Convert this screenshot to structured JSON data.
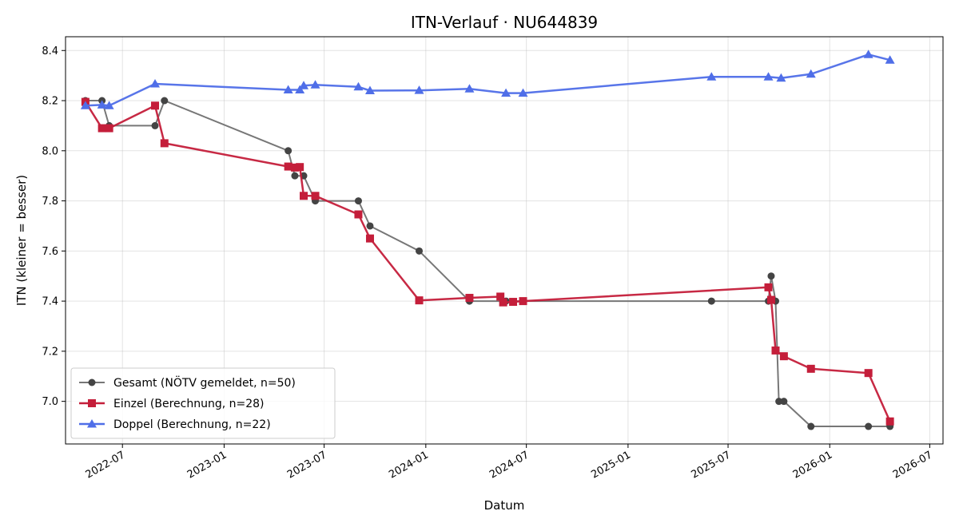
{
  "chart_data": {
    "type": "line",
    "title": "ITN-Verlauf · NU644839",
    "xlabel": "Datum",
    "ylabel": "ITN  (kleiner = besser)",
    "x_axis": {
      "kind": "date",
      "range": [
        "2022-03-20",
        "2026-07-25"
      ],
      "ticks": [
        "2022-07-01",
        "2023-01-01",
        "2023-07-01",
        "2024-01-01",
        "2024-07-01",
        "2025-01-01",
        "2025-07-01",
        "2026-01-01",
        "2026-07-01"
      ],
      "tick_labels": [
        "2022-07",
        "2023-01",
        "2023-07",
        "2024-01",
        "2024-07",
        "2025-01",
        "2025-07",
        "2026-01",
        "2026-07"
      ]
    },
    "y_axis": {
      "range": [
        6.83,
        8.455
      ],
      "ticks": [
        7.0,
        7.2,
        7.4,
        7.6,
        7.8,
        8.0,
        8.2,
        8.4
      ],
      "tick_labels": [
        "7.0",
        "7.2",
        "7.4",
        "7.6",
        "7.8",
        "8.0",
        "8.2",
        "8.4"
      ]
    },
    "grid": true,
    "legend_position": "lower-left",
    "series": [
      {
        "name": "Gesamt (NÖTV gemeldet, n=50)",
        "color": "#777777",
        "marker_color": "#444444",
        "marker": "circle",
        "points": [
          [
            "2022-04-25",
            8.2
          ],
          [
            "2022-05-25",
            8.2
          ],
          [
            "2022-06-07",
            8.1
          ],
          [
            "2022-08-29",
            8.1
          ],
          [
            "2022-09-15",
            8.2
          ],
          [
            "2023-04-27",
            8.0
          ],
          [
            "2023-05-09",
            7.9
          ],
          [
            "2023-05-25",
            7.9
          ],
          [
            "2023-06-15",
            7.8
          ],
          [
            "2023-09-01",
            7.8
          ],
          [
            "2023-09-22",
            7.7
          ],
          [
            "2023-12-20",
            7.6
          ],
          [
            "2024-03-20",
            7.4
          ],
          [
            "2024-05-25",
            7.4
          ],
          [
            "2024-06-25",
            7.4
          ],
          [
            "2025-06-01",
            7.4
          ],
          [
            "2025-09-12",
            7.4
          ],
          [
            "2025-09-17",
            7.5
          ],
          [
            "2025-09-25",
            7.4
          ],
          [
            "2025-10-01",
            7.0
          ],
          [
            "2025-10-10",
            7.0
          ],
          [
            "2025-11-28",
            6.9
          ],
          [
            "2026-03-12",
            6.9
          ],
          [
            "2026-04-20",
            6.9
          ]
        ]
      },
      {
        "name": "Einzel (Berechnung, n=28)",
        "color": "#c41e3a",
        "marker_color": "#c41e3a",
        "marker": "square",
        "points": [
          [
            "2022-04-25",
            8.195
          ],
          [
            "2022-05-25",
            8.09
          ],
          [
            "2022-06-07",
            8.09
          ],
          [
            "2022-08-29",
            8.18
          ],
          [
            "2022-09-15",
            8.03
          ],
          [
            "2023-04-27",
            7.937
          ],
          [
            "2023-05-09",
            7.933
          ],
          [
            "2023-05-18",
            7.935
          ],
          [
            "2023-05-25",
            7.82
          ],
          [
            "2023-06-15",
            7.82
          ],
          [
            "2023-09-01",
            7.746
          ],
          [
            "2023-09-22",
            7.65
          ],
          [
            "2023-12-20",
            7.403
          ],
          [
            "2024-03-20",
            7.413
          ],
          [
            "2024-05-15",
            7.418
          ],
          [
            "2024-05-20",
            7.395
          ],
          [
            "2024-06-07",
            7.397
          ],
          [
            "2024-06-25",
            7.4
          ],
          [
            "2025-09-12",
            7.455
          ],
          [
            "2025-09-17",
            7.405
          ],
          [
            "2025-09-25",
            7.203
          ],
          [
            "2025-10-10",
            7.18
          ],
          [
            "2025-11-28",
            7.13
          ],
          [
            "2026-03-12",
            7.113
          ],
          [
            "2026-04-20",
            6.92
          ]
        ]
      },
      {
        "name": "Doppel (Berechnung, n=22)",
        "color": "#4f6ee8",
        "marker_color": "#4f6ee8",
        "marker": "triangle",
        "points": [
          [
            "2022-04-25",
            8.18
          ],
          [
            "2022-05-25",
            8.183
          ],
          [
            "2022-06-07",
            8.18
          ],
          [
            "2022-08-29",
            8.267
          ],
          [
            "2023-04-27",
            8.243
          ],
          [
            "2023-05-18",
            8.243
          ],
          [
            "2023-05-25",
            8.26
          ],
          [
            "2023-06-15",
            8.263
          ],
          [
            "2023-09-01",
            8.255
          ],
          [
            "2023-09-22",
            8.24
          ],
          [
            "2023-12-20",
            8.241
          ],
          [
            "2024-03-20",
            8.247
          ],
          [
            "2024-05-25",
            8.23
          ],
          [
            "2024-06-25",
            8.23
          ],
          [
            "2025-06-01",
            8.295
          ],
          [
            "2025-09-12",
            8.295
          ],
          [
            "2025-10-05",
            8.29
          ],
          [
            "2025-11-28",
            8.306
          ],
          [
            "2026-03-12",
            8.384
          ],
          [
            "2026-04-20",
            8.362
          ]
        ]
      }
    ]
  }
}
